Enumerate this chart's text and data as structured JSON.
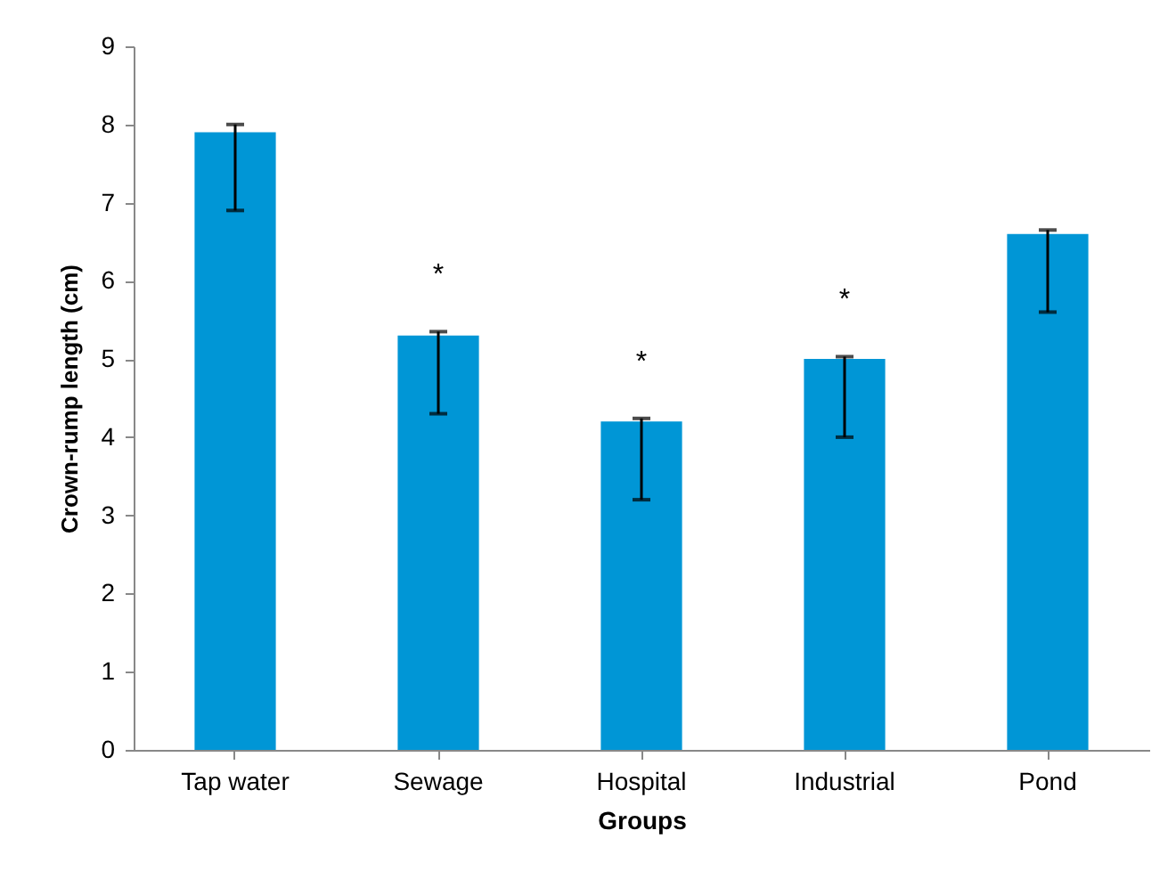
{
  "chart_data": {
    "type": "bar",
    "xlabel": "Groups",
    "ylabel": "Crown-rump length (cm)",
    "categories": [
      "Tap water",
      "Sewage",
      "Hospital",
      "Industrial",
      "Pond"
    ],
    "values": [
      7.9,
      5.3,
      4.2,
      5.0,
      6.6
    ],
    "errors": [
      [
        6.9,
        8.0
      ],
      [
        4.3,
        5.35
      ],
      [
        3.2,
        4.24
      ],
      [
        4.0,
        5.03
      ],
      [
        5.6,
        6.65
      ]
    ],
    "color": "#0096d6",
    "ylim": [
      0,
      9
    ],
    "yticks": [
      0,
      1,
      2,
      3,
      4,
      5,
      6,
      7,
      8,
      9
    ],
    "grid": false,
    "value_labels": [
      null,
      "*",
      "*",
      "*",
      null
    ]
  }
}
